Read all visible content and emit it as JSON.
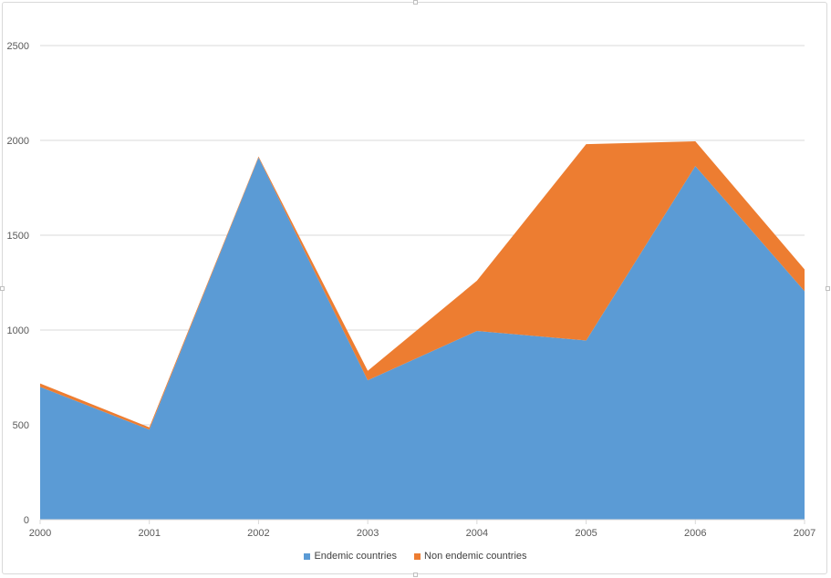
{
  "chart_data": {
    "type": "area",
    "stacked": true,
    "categories": [
      "2000",
      "2001",
      "2002",
      "2003",
      "2004",
      "2005",
      "2006",
      "2007"
    ],
    "series": [
      {
        "name": "Endemic countries",
        "color": "#5b9bd5",
        "values": [
          700,
          475,
          1910,
          735,
          995,
          945,
          1865,
          1205
        ]
      },
      {
        "name": "Non endemic countries",
        "color": "#ed7d31",
        "values": [
          18,
          12,
          5,
          50,
          265,
          1035,
          130,
          115
        ]
      }
    ],
    "ylim": [
      0,
      2500
    ],
    "yticks": [
      0,
      500,
      1000,
      1500,
      2000,
      2500
    ],
    "grid": true,
    "legend_position": "bottom",
    "title": "",
    "xlabel": "",
    "ylabel": ""
  }
}
